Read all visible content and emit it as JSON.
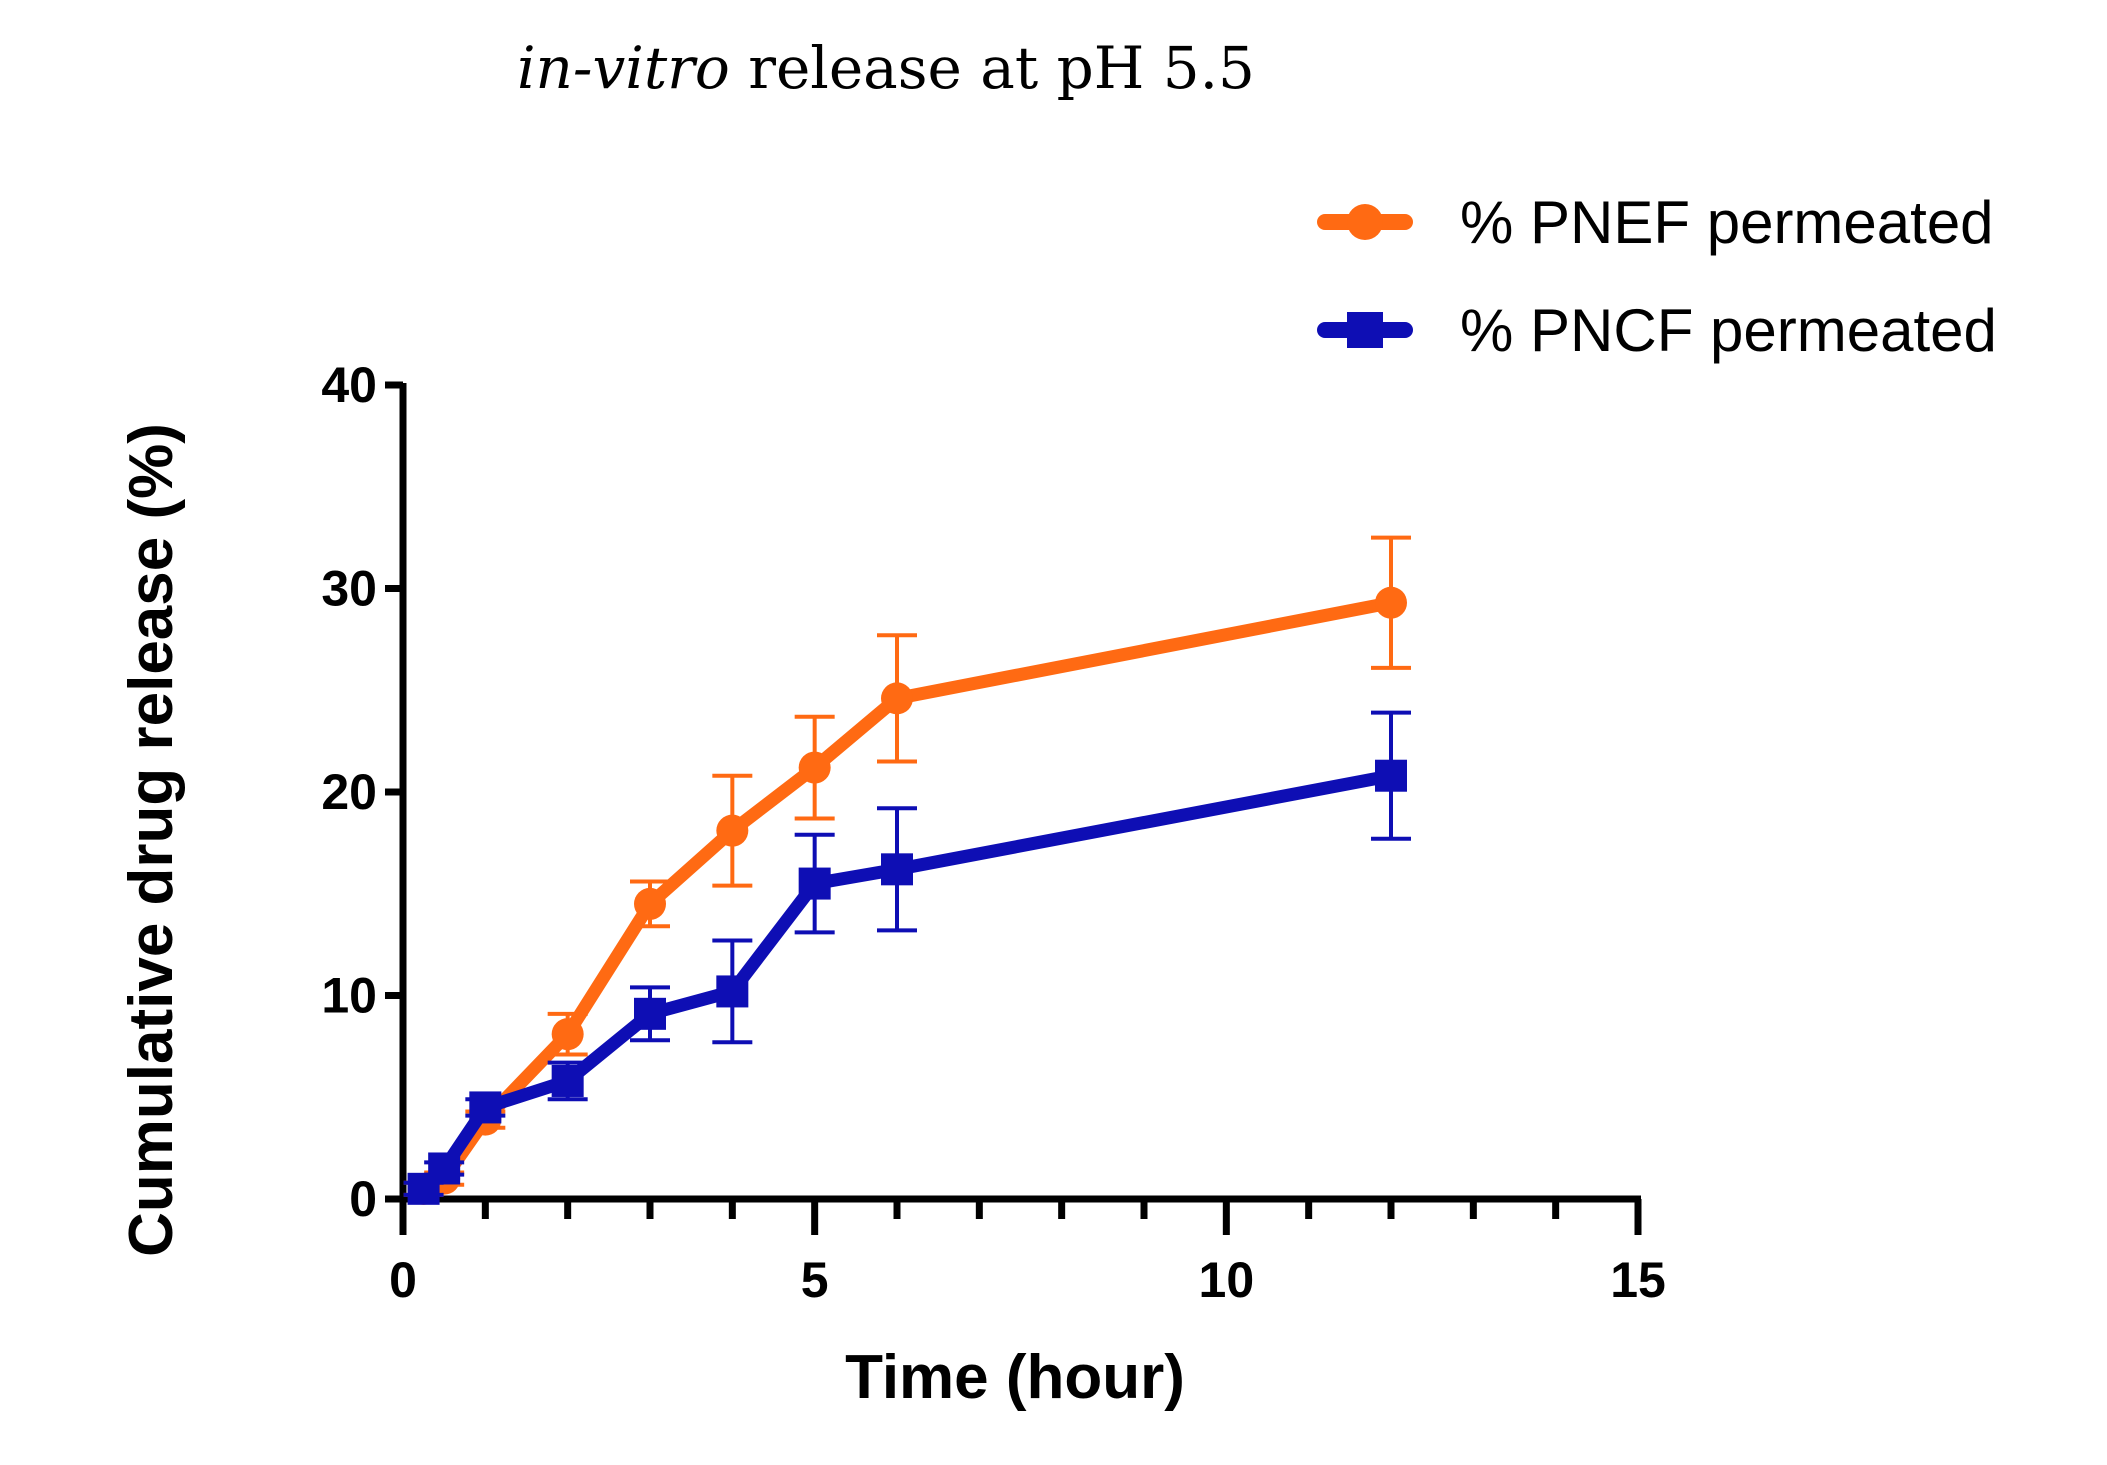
{
  "chart_data": {
    "type": "line",
    "title_italic": "in-vitro",
    "title_rest": " release at pH 5.5",
    "xlabel": "Time (hour)",
    "ylabel": "Cumulative drug release (%)",
    "xlim": [
      0,
      15
    ],
    "ylim": [
      0,
      40
    ],
    "x_major_ticks": [
      0,
      5,
      10,
      15
    ],
    "x_tick_labels": [
      "0",
      "5",
      "10",
      "15"
    ],
    "x_minor_step": 1,
    "y_major_ticks": [
      0,
      10,
      20,
      30,
      40
    ],
    "y_tick_labels": [
      "0",
      "10",
      "20",
      "30",
      "40"
    ],
    "grid": false,
    "legend_position": "top-right",
    "series": [
      {
        "name": "% PNEF permeated",
        "color": "#FF6A13",
        "marker": "circle",
        "x": [
          0.25,
          0.5,
          1,
          2,
          3,
          4,
          5,
          6,
          12
        ],
        "y": [
          0.5,
          1.0,
          3.9,
          8.1,
          14.5,
          18.1,
          21.2,
          24.6,
          29.3
        ],
        "error": [
          0.3,
          0.3,
          0.4,
          1.0,
          1.1,
          2.7,
          2.5,
          3.1,
          3.2
        ]
      },
      {
        "name": "% PNCF permeated",
        "color": "#0E0EB4",
        "marker": "square",
        "x": [
          0.25,
          0.5,
          1,
          2,
          3,
          4,
          5,
          6,
          12
        ],
        "y": [
          0.5,
          1.5,
          4.5,
          5.8,
          9.1,
          10.2,
          15.5,
          16.2,
          20.8
        ],
        "error": [
          0.3,
          0.3,
          0.4,
          0.9,
          1.3,
          2.5,
          2.4,
          3.0,
          3.1
        ]
      }
    ]
  }
}
